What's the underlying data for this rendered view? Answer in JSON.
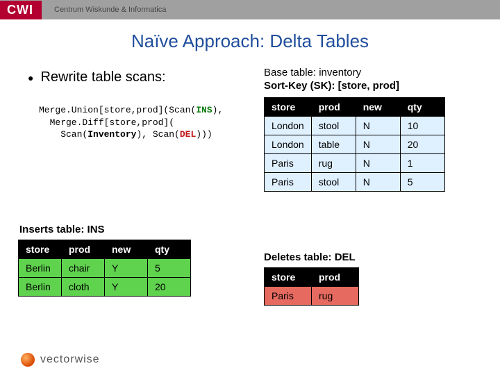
{
  "header": {
    "logo": "CWI",
    "subtitle": "Centrum Wiskunde & Informatica"
  },
  "title": "Naïve Approach: Delta Tables",
  "bullet": "Rewrite table scans:",
  "base_label_1": "Base table: inventory",
  "base_label_2": "Sort-Key (SK): [store, prod]",
  "code": {
    "l1a": "Merge.Union[store,prod](Scan(",
    "l1b": "INS",
    "l1c": "),",
    "l2a": "  Merge.Diff[store,prod](",
    "l3a": "    Scan(",
    "l3b": "Inventory",
    "l3c": "), Scan(",
    "l3d": "DEL",
    "l3e": ")))"
  },
  "inventory": {
    "columns": [
      "store",
      "prod",
      "new",
      "qty"
    ],
    "rows": [
      [
        "London",
        "stool",
        "N",
        "10"
      ],
      [
        "London",
        "table",
        "N",
        "20"
      ],
      [
        "Paris",
        "rug",
        "N",
        "1"
      ],
      [
        "Paris",
        "stool",
        "N",
        "5"
      ]
    ],
    "row_bg": "#dff0ff"
  },
  "ins_label": "Inserts table: INS",
  "ins": {
    "columns": [
      "store",
      "prod",
      "new",
      "qty"
    ],
    "rows": [
      [
        "Berlin",
        "chair",
        "Y",
        "5"
      ],
      [
        "Berlin",
        "cloth",
        "Y",
        "20"
      ]
    ],
    "row_bg": "#5fd24e"
  },
  "del_label": "Deletes table: DEL",
  "del": {
    "columns": [
      "store",
      "prod"
    ],
    "rows": [
      [
        "Paris",
        "rug"
      ]
    ],
    "row_bg": "#e66a5f"
  },
  "footer": "vectorwise",
  "colors": {
    "title": "#1f4e9c",
    "header_bar": "#a0a0a0",
    "logo_bg": "#b30030"
  }
}
